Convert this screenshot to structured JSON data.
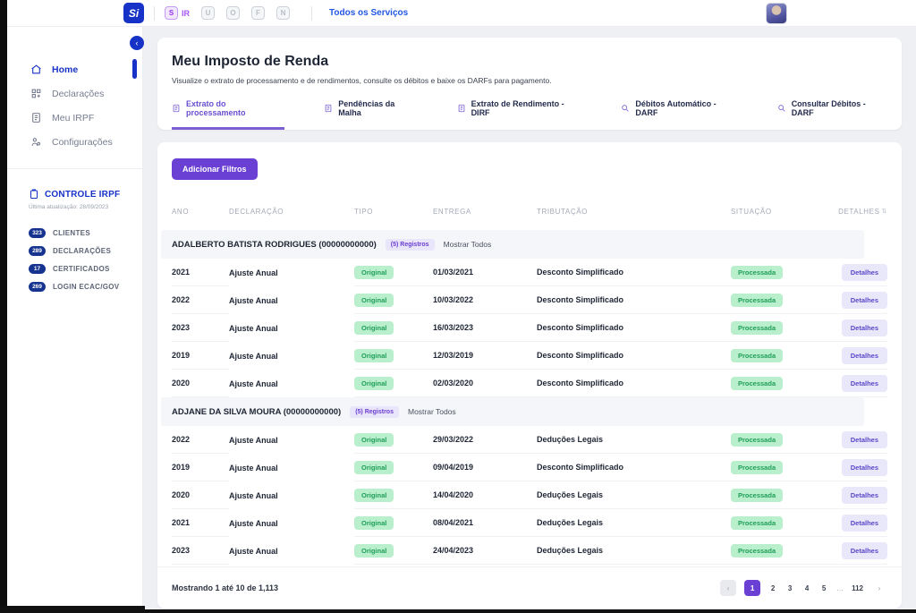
{
  "topbar": {
    "logo": "Si",
    "ir_module": {
      "icon_letter": "S",
      "label": "IR"
    },
    "inactive_modules": [
      "U",
      "O",
      "F",
      "N"
    ],
    "services_label": "Todos os Serviços"
  },
  "sidebar": {
    "collapse_icon": "‹",
    "nav": [
      {
        "label": "Home",
        "icon": "home",
        "active": true
      },
      {
        "label": "Declarações",
        "icon": "grid",
        "active": false
      },
      {
        "label": "Meu IRPF",
        "icon": "doc",
        "active": false
      },
      {
        "label": "Configurações",
        "icon": "users",
        "active": false
      }
    ],
    "controle": {
      "title": "CONTROLE IRPF",
      "updated": "Última atualização: 28/09/2023",
      "stats": [
        {
          "value": "323",
          "label": "CLIENTES"
        },
        {
          "value": "289",
          "label": "DECLARAÇÕES"
        },
        {
          "value": "17",
          "label": "CERTIFICADOS"
        },
        {
          "value": "269",
          "label": "LOGIN ECAC/GOV"
        }
      ]
    }
  },
  "header": {
    "title": "Meu Imposto de Renda",
    "subtitle": "Visualize o extrato de processamento e de rendimentos, consulte os débitos e baixe os DARFs para pagamento.",
    "tabs": [
      {
        "label": "Extrato do processamento",
        "icon": "doc",
        "active": true
      },
      {
        "label": "Pendências da Malha",
        "icon": "doc",
        "active": false
      },
      {
        "label": "Extrato de Rendimento - DIRF",
        "icon": "doc",
        "active": false
      },
      {
        "label": "Débitos Automático - DARF",
        "icon": "search",
        "active": false
      },
      {
        "label": "Consultar Débitos - DARF",
        "icon": "search",
        "active": false
      }
    ]
  },
  "filters": {
    "add_button": "Adicionar Filtros"
  },
  "table": {
    "columns": [
      "ANO",
      "DECLARAÇÃO",
      "TIPO",
      "ENTREGA",
      "TRIBUTAÇÃO",
      "SITUAÇÃO",
      "DETALHES"
    ],
    "sort_icon": "⇅",
    "groups": [
      {
        "name": "ADALBERTO BATISTA RODRIGUES (00000000000)",
        "registros": "(5) Registros",
        "show_all": "Mostrar Todos",
        "rows": [
          {
            "ano": "2021",
            "declaracao": "Ajuste Anual",
            "tipo": "Original",
            "entrega": "01/03/2021",
            "tributacao": "Desconto Simplificado",
            "situacao": "Processada",
            "detalhes": "Detalhes"
          },
          {
            "ano": "2022",
            "declaracao": "Ajuste Anual",
            "tipo": "Original",
            "entrega": "10/03/2022",
            "tributacao": "Desconto Simplificado",
            "situacao": "Processada",
            "detalhes": "Detalhes"
          },
          {
            "ano": "2023",
            "declaracao": "Ajuste Anual",
            "tipo": "Original",
            "entrega": "16/03/2023",
            "tributacao": "Desconto Simplificado",
            "situacao": "Processada",
            "detalhes": "Detalhes"
          },
          {
            "ano": "2019",
            "declaracao": "Ajuste Anual",
            "tipo": "Original",
            "entrega": "12/03/2019",
            "tributacao": "Desconto Simplificado",
            "situacao": "Processada",
            "detalhes": "Detalhes"
          },
          {
            "ano": "2020",
            "declaracao": "Ajuste Anual",
            "tipo": "Original",
            "entrega": "02/03/2020",
            "tributacao": "Desconto Simplificado",
            "situacao": "Processada",
            "detalhes": "Detalhes"
          }
        ]
      },
      {
        "name": "ADJANE DA SILVA MOURA (00000000000)",
        "registros": "(5) Registros",
        "show_all": "Mostrar Todos",
        "rows": [
          {
            "ano": "2022",
            "declaracao": "Ajuste Anual",
            "tipo": "Original",
            "entrega": "29/03/2022",
            "tributacao": "Deduções Legais",
            "situacao": "Processada",
            "detalhes": "Detalhes"
          },
          {
            "ano": "2019",
            "declaracao": "Ajuste Anual",
            "tipo": "Original",
            "entrega": "09/04/2019",
            "tributacao": "Desconto Simplificado",
            "situacao": "Processada",
            "detalhes": "Detalhes"
          },
          {
            "ano": "2020",
            "declaracao": "Ajuste Anual",
            "tipo": "Original",
            "entrega": "14/04/2020",
            "tributacao": "Deduções Legais",
            "situacao": "Processada",
            "detalhes": "Detalhes"
          },
          {
            "ano": "2021",
            "declaracao": "Ajuste Anual",
            "tipo": "Original",
            "entrega": "08/04/2021",
            "tributacao": "Deduções Legais",
            "situacao": "Processada",
            "detalhes": "Detalhes"
          },
          {
            "ano": "2023",
            "declaracao": "Ajuste Anual",
            "tipo": "Original",
            "entrega": "24/04/2023",
            "tributacao": "Deduções Legais",
            "situacao": "Processada",
            "detalhes": "Detalhes"
          }
        ]
      }
    ],
    "footer": {
      "showing": "Mostrando 1 até 10 de 1,113",
      "pagination": {
        "prev": "‹",
        "pages": [
          "1",
          "2",
          "3",
          "4",
          "5",
          "…",
          "112"
        ],
        "active": "1",
        "next": "›"
      }
    }
  }
}
